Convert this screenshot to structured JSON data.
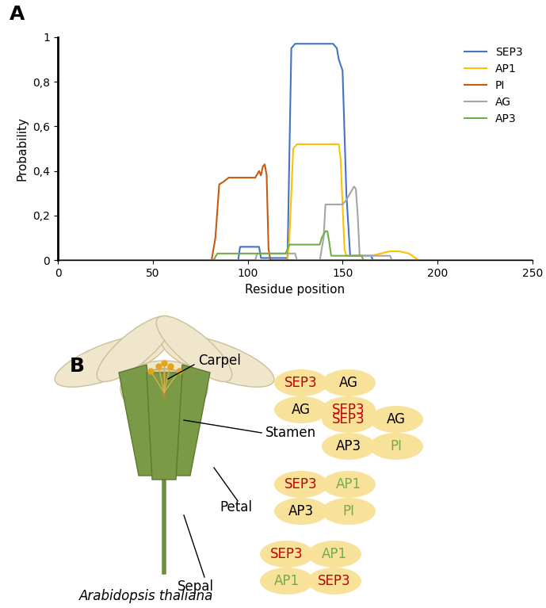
{
  "panel_labels": [
    "A",
    "B"
  ],
  "chart_data": {
    "type": "line",
    "xlabel": "Residue position",
    "ylabel": "Probability",
    "xlim": [
      0,
      250
    ],
    "xticks": [
      0,
      50,
      100,
      150,
      200,
      250
    ],
    "ylim": [
      0,
      1
    ],
    "yticks": [
      0,
      {
        "value": 0.2,
        "label": "0,2"
      },
      {
        "value": 0.4,
        "label": "0,4"
      },
      {
        "value": 0.6,
        "label": "0,6"
      },
      {
        "value": 0.8,
        "label": "0,8"
      },
      1
    ],
    "grid": false,
    "legend": "upper right",
    "series": [
      {
        "name": "SEP3",
        "color": "#4472c4",
        "x": [
          0,
          95,
          96,
          106,
          107,
          121,
          123,
          125,
          145,
          147,
          148,
          150,
          152,
          154,
          165,
          166,
          250
        ],
        "values": [
          0,
          0,
          0.06,
          0.06,
          0.01,
          0.01,
          0.95,
          0.97,
          0.97,
          0.95,
          0.9,
          0.85,
          0.3,
          0.02,
          0.02,
          0,
          0
        ]
      },
      {
        "name": "AP1",
        "color": "#ffc000",
        "x": [
          0,
          121,
          122,
          124,
          126,
          148,
          149,
          151,
          152,
          165,
          170,
          175,
          180,
          185,
          190,
          250
        ],
        "values": [
          0,
          0,
          0.1,
          0.5,
          0.52,
          0.52,
          0.45,
          0.05,
          0.02,
          0.02,
          0.03,
          0.04,
          0.04,
          0.03,
          0,
          0
        ]
      },
      {
        "name": "PI",
        "color": "#c55a11",
        "x": [
          0,
          81,
          83,
          85,
          87,
          90,
          104,
          106,
          107,
          108,
          109,
          110,
          111,
          112,
          250
        ],
        "values": [
          0,
          0,
          0.1,
          0.34,
          0.35,
          0.37,
          0.37,
          0.4,
          0.38,
          0.42,
          0.43,
          0.38,
          0.05,
          0,
          0
        ]
      },
      {
        "name": "AG",
        "color": "#a5a5a5",
        "x": [
          0,
          104,
          105,
          125,
          126,
          138,
          140,
          141,
          150,
          152,
          154,
          156,
          157,
          158,
          159,
          175,
          176,
          250
        ],
        "values": [
          0,
          0,
          0.03,
          0.03,
          0,
          0,
          0.1,
          0.25,
          0.25,
          0.27,
          0.3,
          0.33,
          0.32,
          0.2,
          0.02,
          0.02,
          0,
          0
        ]
      },
      {
        "name": "AP3",
        "color": "#70ad47",
        "x": [
          0,
          82,
          84,
          120,
          122,
          138,
          139,
          141,
          142,
          143,
          144,
          160,
          161,
          250
        ],
        "values": [
          0,
          0,
          0.03,
          0.03,
          0.07,
          0.07,
          0.1,
          0.13,
          0.13,
          0.08,
          0.02,
          0.02,
          0,
          0
        ]
      }
    ]
  },
  "diagram": {
    "species": "Arabidopsis thaliana",
    "colors": {
      "SEP3": "#c00000",
      "AP1": "#70ad47",
      "PI": "#70ad47",
      "AG": "#000000",
      "AP3": "#000000"
    },
    "complexes": [
      {
        "organ": "Carpel",
        "proteins": [
          [
            "SEP3",
            "AG"
          ],
          [
            "AG",
            "SEP3"
          ]
        ]
      },
      {
        "organ": "Stamen",
        "proteins": [
          [
            "SEP3",
            "AG"
          ],
          [
            "AP3",
            "PI"
          ]
        ]
      },
      {
        "organ": "Petal",
        "proteins": [
          [
            "SEP3",
            "AP1"
          ],
          [
            "AP3",
            "PI"
          ]
        ]
      },
      {
        "organ": "Sepal",
        "proteins": [
          [
            "SEP3",
            "AP1"
          ],
          [
            "AP1",
            "SEP3"
          ]
        ]
      }
    ]
  }
}
